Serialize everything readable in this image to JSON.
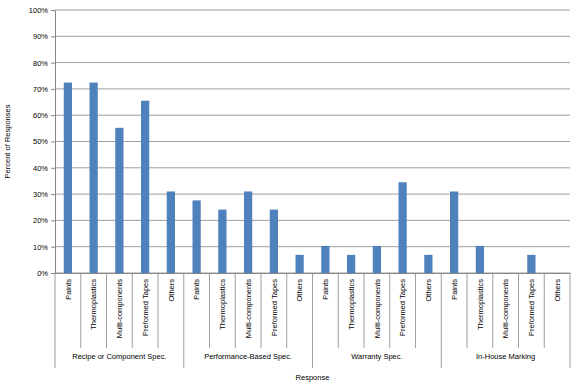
{
  "chart_data": {
    "type": "bar",
    "x_label": "Response",
    "y_label": "Percent of Responses",
    "categories": [
      "Paints",
      "Thermoplastics",
      "Multi-components",
      "Preformed Tapes",
      "Others",
      "Paints",
      "Thermoplastics",
      "Multi-components",
      "Preformed Tapes",
      "Others",
      "Paints",
      "Thermoplastics",
      "Multi-components",
      "Preformed Tapes",
      "Others",
      "Paints",
      "Thermoplastics",
      "Multi-components",
      "Preformed Tapes",
      "Others"
    ],
    "category_groups": [
      "Recipe or Component Spec.",
      "Performance-Based Spec.",
      "Warranty Spec.",
      "In-House Marking"
    ],
    "values": [
      72.4,
      72.4,
      55.2,
      65.5,
      31.0,
      27.6,
      24.1,
      31.0,
      24.1,
      6.9,
      10.3,
      6.9,
      10.3,
      34.5,
      6.9,
      31.0,
      10.3,
      0,
      6.9,
      0
    ],
    "color": "#4f81bd",
    "ylim": [
      0,
      100
    ],
    "yticks": [
      {
        "value": 0,
        "label": "0%"
      },
      {
        "value": 10,
        "label": "10%"
      },
      {
        "value": 20,
        "label": "20%"
      },
      {
        "value": 30,
        "label": "30%"
      },
      {
        "value": 40,
        "label": "40%"
      },
      {
        "value": 50,
        "label": "50%"
      },
      {
        "value": 60,
        "label": "60%"
      },
      {
        "value": 70,
        "label": "70%"
      },
      {
        "value": 80,
        "label": "80%"
      },
      {
        "value": 90,
        "label": "90%"
      },
      {
        "value": 100,
        "label": "100%"
      }
    ],
    "grid": true
  }
}
